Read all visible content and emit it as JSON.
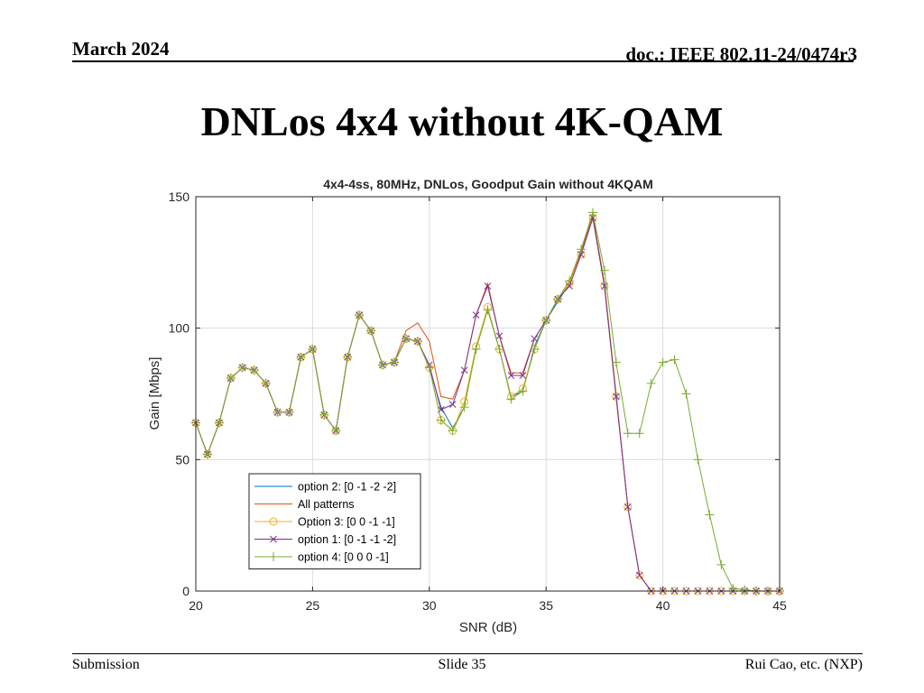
{
  "header": {
    "date": "March 2024",
    "doc": "doc.: IEEE 802.11-24/0474r3"
  },
  "slide": {
    "title": "DNLos 4x4 without 4K-QAM"
  },
  "footer": {
    "left": "Submission",
    "center": "Slide 35",
    "right": "Rui Cao, etc. (NXP)"
  },
  "chart_data": {
    "type": "line",
    "title": "4x4-4ss, 80MHz, DNLos, Goodput Gain without 4KQAM",
    "xlabel": "SNR (dB)",
    "ylabel": "Gain [Mbps]",
    "xlim": [
      20,
      45
    ],
    "ylim": [
      0,
      150
    ],
    "xticks": [
      20,
      25,
      30,
      35,
      40,
      45
    ],
    "yticks": [
      0,
      50,
      100,
      150
    ],
    "grid": true,
    "legend_position": "bottom-left",
    "series": [
      {
        "name": "option 2: [0 -1 -2 -2]",
        "color": "#0072BD",
        "marker": "none",
        "x": [
          20,
          20.5,
          21,
          21.5,
          22,
          22.5,
          23,
          23.5,
          24,
          24.5,
          25,
          25.5,
          26,
          26.5,
          27,
          27.5,
          28,
          28.5,
          29,
          29.5,
          30,
          30.5,
          31,
          31.5,
          32,
          32.5,
          33,
          33.5,
          34,
          34.5,
          35,
          35.5,
          36,
          36.5,
          37,
          37.5,
          38,
          38.5,
          39,
          39.5,
          40,
          40.5,
          41,
          41.5,
          42,
          42.5,
          43,
          43.5,
          44,
          44.5,
          45
        ],
        "y": [
          64,
          52,
          64,
          81,
          85,
          84,
          79,
          68,
          68,
          89,
          92,
          67,
          61,
          89,
          105,
          99,
          86,
          87,
          96,
          95,
          85,
          70,
          62,
          70,
          93,
          107,
          92,
          74,
          76,
          93,
          103,
          110,
          117,
          128,
          142,
          116,
          74,
          32,
          6,
          0,
          0,
          0,
          0,
          0,
          0,
          0,
          0,
          0,
          0,
          0,
          0
        ]
      },
      {
        "name": "All patterns",
        "color": "#D95319",
        "marker": "none",
        "x": [
          20,
          20.5,
          21,
          21.5,
          22,
          22.5,
          23,
          23.5,
          24,
          24.5,
          25,
          25.5,
          26,
          26.5,
          27,
          27.5,
          28,
          28.5,
          29,
          29.5,
          30,
          30.5,
          31,
          31.5,
          32,
          32.5,
          33,
          33.5,
          34,
          34.5,
          35,
          35.5,
          36,
          36.5,
          37,
          37.5,
          38,
          38.5,
          39,
          39.5,
          40,
          40.5,
          41,
          41.5,
          42,
          42.5,
          43,
          43.5,
          44,
          44.5,
          45
        ],
        "y": [
          64,
          52,
          64,
          81,
          85,
          84,
          79,
          68,
          68,
          89,
          92,
          67,
          61,
          89,
          105,
          99,
          86,
          87,
          99,
          102,
          95,
          74,
          73,
          84,
          105,
          117,
          97,
          83,
          83,
          96,
          103,
          111,
          117,
          129,
          143,
          117,
          75,
          32,
          6,
          0,
          0,
          0,
          0,
          0,
          0,
          0,
          0,
          0,
          0,
          0,
          0
        ]
      },
      {
        "name": "Option 3: [0 0 -1 -1]",
        "color": "#EDB120",
        "marker": "circle",
        "x": [
          20,
          20.5,
          21,
          21.5,
          22,
          22.5,
          23,
          23.5,
          24,
          24.5,
          25,
          25.5,
          26,
          26.5,
          27,
          27.5,
          28,
          28.5,
          29,
          29.5,
          30,
          30.5,
          31,
          31.5,
          32,
          32.5,
          33,
          33.5,
          34,
          34.5,
          35,
          35.5,
          36,
          36.5,
          37,
          37.5,
          38,
          38.5,
          39,
          39.5,
          40,
          40.5,
          41,
          41.5,
          42,
          42.5,
          43,
          43.5,
          44,
          44.5,
          45
        ],
        "y": [
          64,
          52,
          64,
          81,
          85,
          84,
          79,
          68,
          68,
          89,
          92,
          67,
          61,
          89,
          105,
          99,
          86,
          87,
          96,
          95,
          85,
          65,
          61,
          72,
          93,
          108,
          92,
          74,
          77,
          92,
          103,
          111,
          117,
          128,
          142,
          116,
          74,
          32,
          6,
          0,
          0,
          0,
          0,
          0,
          0,
          0,
          0,
          0,
          0,
          0,
          0
        ]
      },
      {
        "name": "option 1: [0 -1 -1 -2]",
        "color": "#7E2F8E",
        "marker": "x",
        "x": [
          20,
          20.5,
          21,
          21.5,
          22,
          22.5,
          23,
          23.5,
          24,
          24.5,
          25,
          25.5,
          26,
          26.5,
          27,
          27.5,
          28,
          28.5,
          29,
          29.5,
          30,
          30.5,
          31,
          31.5,
          32,
          32.5,
          33,
          33.5,
          34,
          34.5,
          35,
          35.5,
          36,
          36.5,
          37,
          37.5,
          38,
          38.5,
          39,
          39.5,
          40,
          40.5,
          41,
          41.5,
          42,
          42.5,
          43,
          43.5,
          44,
          44.5,
          45
        ],
        "y": [
          64,
          52,
          64,
          81,
          85,
          84,
          79,
          68,
          68,
          89,
          92,
          67,
          61,
          89,
          105,
          99,
          86,
          87,
          96,
          95,
          86,
          69,
          71,
          84,
          105,
          116,
          97,
          82,
          82,
          96,
          103,
          111,
          116,
          128,
          142,
          116,
          74,
          32,
          6,
          0,
          0,
          0,
          0,
          0,
          0,
          0,
          0,
          0,
          0,
          0,
          0
        ]
      },
      {
        "name": "option 4: [0 0 0 -1]",
        "color": "#77AC30",
        "marker": "plus",
        "x": [
          20,
          20.5,
          21,
          21.5,
          22,
          22.5,
          23,
          23.5,
          24,
          24.5,
          25,
          25.5,
          26,
          26.5,
          27,
          27.5,
          28,
          28.5,
          29,
          29.5,
          30,
          30.5,
          31,
          31.5,
          32,
          32.5,
          33,
          33.5,
          34,
          34.5,
          35,
          35.5,
          36,
          36.5,
          37,
          37.5,
          38,
          38.5,
          39,
          39.5,
          40,
          40.5,
          41,
          41.5,
          42,
          42.5,
          43,
          43.5,
          44,
          44.5,
          45
        ],
        "y": [
          64,
          52,
          64,
          81,
          85,
          84,
          79,
          68,
          68,
          89,
          92,
          67,
          61,
          89,
          105,
          99,
          86,
          87,
          96,
          95,
          85,
          65,
          61,
          70,
          92,
          107,
          92,
          73,
          76,
          92,
          103,
          111,
          118,
          130,
          144,
          122,
          87,
          60,
          60,
          79,
          87,
          88,
          75,
          50,
          29,
          10,
          1,
          0.5,
          0,
          0,
          0
        ]
      }
    ]
  }
}
